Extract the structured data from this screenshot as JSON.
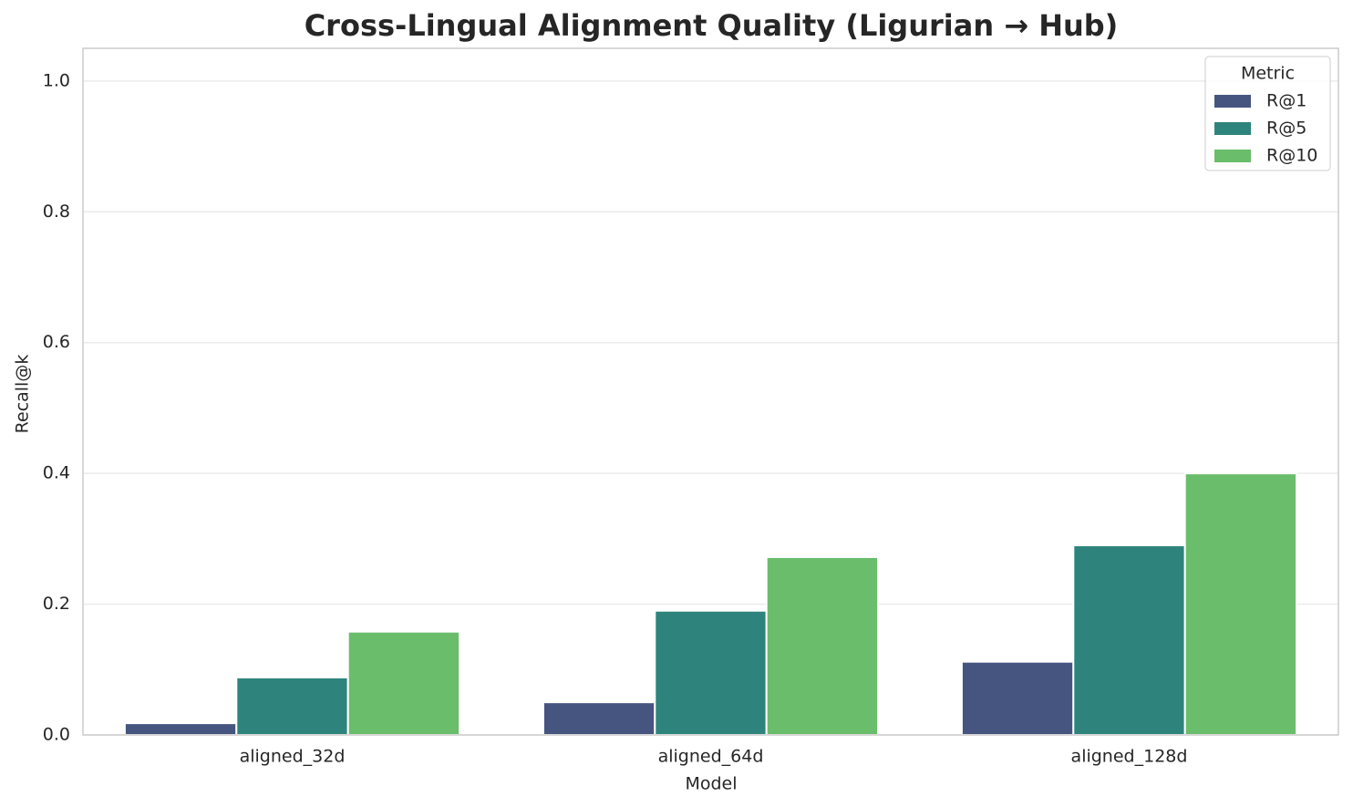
{
  "chart_data": {
    "type": "bar",
    "title": "Cross-Lingual Alignment Quality (Ligurian → Hub)",
    "xlabel": "Model",
    "ylabel": "Recall@k",
    "categories": [
      "aligned_32d",
      "aligned_64d",
      "aligned_128d"
    ],
    "series": [
      {
        "name": "R@1",
        "color": "#465580",
        "values": [
          0.018,
          0.05,
          0.112
        ]
      },
      {
        "name": "R@5",
        "color": "#2e847c",
        "values": [
          0.088,
          0.19,
          0.29
        ]
      },
      {
        "name": "R@10",
        "color": "#6abd6b",
        "values": [
          0.158,
          0.272,
          0.4
        ]
      }
    ],
    "ylim": [
      0,
      1.05
    ],
    "yticks": [
      {
        "value": 0,
        "label": "0.0"
      },
      0.2,
      0.4,
      0.6,
      0.8,
      {
        "value": 1,
        "label": "1.0"
      }
    ],
    "grid": true,
    "legend_title": "Metric",
    "legend_position": "upper right"
  }
}
